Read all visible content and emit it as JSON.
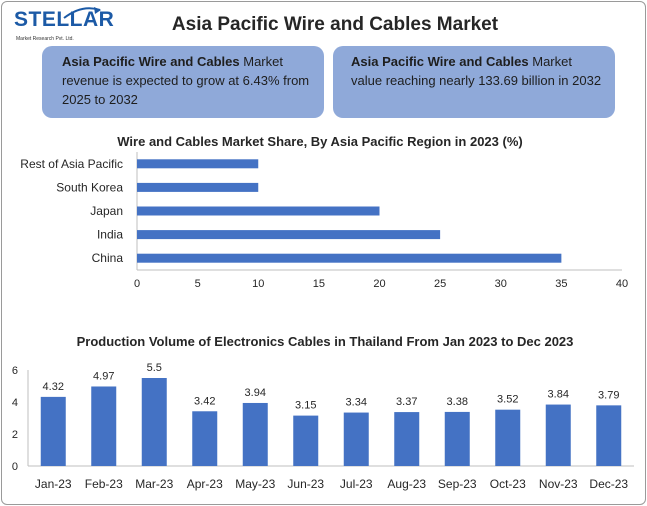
{
  "header": {
    "logo_text": "STELLAR",
    "logo_subtext": "Market Research Pvt. Ltd.",
    "title": "Asia Pacific Wire and Cables Market"
  },
  "info_boxes": [
    {
      "bold": "Asia Pacific Wire and Cables",
      "text": " Market revenue is expected to grow at 6.43% from 2025 to 2032"
    },
    {
      "bold": "Asia Pacific Wire and Cables",
      "text": " Market value reaching nearly 133.69 billion in 2032"
    }
  ],
  "colors": {
    "bar": "#4472c4",
    "box": "#8fa9d9",
    "logo": "#1c5aa6"
  },
  "chart_data": [
    {
      "type": "bar",
      "orientation": "horizontal",
      "title": "Wire and Cables Market Share, By Asia Pacific Region in 2023 (%)",
      "categories": [
        "Rest of Asia Pacific",
        "South Korea",
        "Japan",
        "India",
        "China"
      ],
      "values": [
        10,
        10,
        20,
        25,
        35
      ],
      "xlim": [
        0,
        40
      ],
      "xticks": [
        0,
        5,
        10,
        15,
        20,
        25,
        30,
        35,
        40
      ],
      "grid": false
    },
    {
      "type": "bar",
      "title": "Production Volume of Electronics Cables in Thailand From Jan 2023 to Dec 2023",
      "categories": [
        "Jan-23",
        "Feb-23",
        "Mar-23",
        "Apr-23",
        "May-23",
        "Jun-23",
        "Jul-23",
        "Aug-23",
        "Sep-23",
        "Oct-23",
        "Nov-23",
        "Dec-23"
      ],
      "values": [
        4.32,
        4.97,
        5.5,
        3.42,
        3.94,
        3.15,
        3.34,
        3.37,
        3.38,
        3.52,
        3.84,
        3.79
      ],
      "ylim": [
        0,
        6
      ],
      "yticks": [
        0,
        2,
        4,
        6
      ],
      "data_labels": true,
      "grid": false
    }
  ]
}
